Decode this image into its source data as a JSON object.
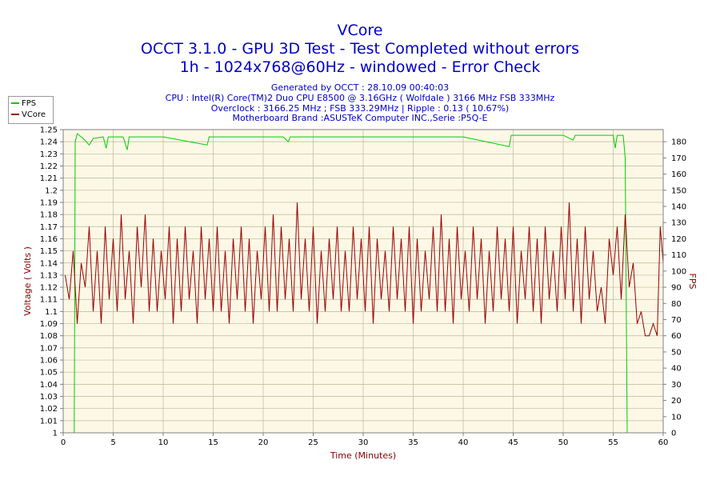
{
  "header": {
    "title": "VCore",
    "subtitle1": "OCCT 3.1.0 - GPU 3D Test - Test Completed without errors",
    "subtitle2": "1h - 1024x768@60Hz - windowed - Error Check",
    "generated": "Generated by OCCT : 28.10.09 00:40:03",
    "cpu": "CPU : Intel(R) Core(TM)2 Duo CPU E8500 @ 3.16GHz ( Wolfdale ) 3166 MHz FSB 333MHz",
    "overclock": "Overclock : 3166.25 MHz ; FSB 333.29MHz | Ripple : 0.13 ( 10.67%)",
    "motherboard": "Motherboard Brand :ASUSTeK Computer INC.,Serie :P5Q-E"
  },
  "legend": [
    {
      "name": "FPS",
      "color": "#00cc00"
    },
    {
      "name": "VCore",
      "color": "#990000"
    }
  ],
  "chart_data": {
    "type": "line",
    "xlabel": "Time (Minutes)",
    "ylabel": "Voltage ( Volts )",
    "y2label": "FPS",
    "xlim": [
      0,
      60
    ],
    "ylim": [
      1.0,
      1.25
    ],
    "y2lim": [
      0,
      187.5
    ],
    "x_ticks": [
      0,
      5,
      10,
      15,
      20,
      25,
      30,
      35,
      40,
      45,
      50,
      55,
      60
    ],
    "y_ticks": [
      "1.25",
      "1.24",
      "1.23",
      "1.22",
      "1.21",
      "1.2",
      "1.19",
      "1.18",
      "1.17",
      "1.16",
      "1.15",
      "1.14",
      "1.13",
      "1.12",
      "1.11",
      "1.1",
      "1.09",
      "1.08",
      "1.07",
      "1.06",
      "1.05",
      "1.04",
      "1.03",
      "1.02",
      "1.01",
      "1"
    ],
    "y2_ticks": [
      180,
      170,
      160,
      150,
      140,
      130,
      120,
      110,
      100,
      90,
      80,
      70,
      60,
      50,
      40,
      30,
      20,
      10,
      0
    ],
    "grid": true,
    "legend_position": "top-left",
    "series": [
      {
        "name": "FPS",
        "color": "#00cc00",
        "axis": "right",
        "points": [
          [
            0,
            0
          ],
          [
            1.1,
            0
          ],
          [
            1.2,
            180
          ],
          [
            1.4,
            185
          ],
          [
            2,
            182
          ],
          [
            2.6,
            178
          ],
          [
            3,
            182
          ],
          [
            4,
            183
          ],
          [
            4.3,
            176
          ],
          [
            4.5,
            183
          ],
          [
            6,
            183
          ],
          [
            6.4,
            175
          ],
          [
            6.6,
            183
          ],
          [
            10,
            183
          ],
          [
            14.4,
            178
          ],
          [
            14.6,
            183
          ],
          [
            22,
            183
          ],
          [
            22.5,
            180
          ],
          [
            22.7,
            183
          ],
          [
            30,
            183
          ],
          [
            40,
            183
          ],
          [
            44.6,
            177
          ],
          [
            44.8,
            184
          ],
          [
            50,
            184
          ],
          [
            51,
            181
          ],
          [
            51.2,
            184
          ],
          [
            55,
            184
          ],
          [
            55.2,
            176
          ],
          [
            55.4,
            184
          ],
          [
            56,
            184
          ],
          [
            56.2,
            170
          ],
          [
            56.4,
            0
          ],
          [
            60,
            0
          ]
        ]
      },
      {
        "name": "VCore",
        "color": "#990000",
        "axis": "left",
        "points": [
          [
            0.2,
            1.13
          ],
          [
            0.6,
            1.11
          ],
          [
            1.0,
            1.15
          ],
          [
            1.4,
            1.09
          ],
          [
            1.8,
            1.14
          ],
          [
            2.2,
            1.12
          ],
          [
            2.6,
            1.17
          ],
          [
            3.0,
            1.1
          ],
          [
            3.4,
            1.15
          ],
          [
            3.8,
            1.09
          ],
          [
            4.2,
            1.17
          ],
          [
            4.6,
            1.11
          ],
          [
            5.0,
            1.16
          ],
          [
            5.4,
            1.1
          ],
          [
            5.8,
            1.18
          ],
          [
            6.2,
            1.11
          ],
          [
            6.6,
            1.15
          ],
          [
            7.0,
            1.09
          ],
          [
            7.4,
            1.17
          ],
          [
            7.8,
            1.12
          ],
          [
            8.2,
            1.18
          ],
          [
            8.6,
            1.1
          ],
          [
            9.0,
            1.16
          ],
          [
            9.4,
            1.1
          ],
          [
            9.8,
            1.15
          ],
          [
            10.2,
            1.11
          ],
          [
            10.6,
            1.17
          ],
          [
            11.0,
            1.09
          ],
          [
            11.4,
            1.16
          ],
          [
            11.8,
            1.1
          ],
          [
            12.2,
            1.17
          ],
          [
            12.6,
            1.11
          ],
          [
            13.0,
            1.15
          ],
          [
            13.4,
            1.09
          ],
          [
            13.8,
            1.17
          ],
          [
            14.2,
            1.11
          ],
          [
            14.6,
            1.16
          ],
          [
            15.0,
            1.1
          ],
          [
            15.4,
            1.17
          ],
          [
            15.8,
            1.1
          ],
          [
            16.2,
            1.15
          ],
          [
            16.6,
            1.09
          ],
          [
            17.0,
            1.16
          ],
          [
            17.4,
            1.11
          ],
          [
            17.8,
            1.17
          ],
          [
            18.2,
            1.1
          ],
          [
            18.6,
            1.16
          ],
          [
            19.0,
            1.09
          ],
          [
            19.4,
            1.15
          ],
          [
            19.8,
            1.11
          ],
          [
            20.2,
            1.17
          ],
          [
            20.6,
            1.1
          ],
          [
            21.0,
            1.18
          ],
          [
            21.4,
            1.1
          ],
          [
            21.8,
            1.17
          ],
          [
            22.2,
            1.11
          ],
          [
            22.6,
            1.16
          ],
          [
            23.0,
            1.1
          ],
          [
            23.4,
            1.19
          ],
          [
            23.8,
            1.11
          ],
          [
            24.2,
            1.16
          ],
          [
            24.6,
            1.1
          ],
          [
            25.0,
            1.17
          ],
          [
            25.4,
            1.09
          ],
          [
            25.8,
            1.15
          ],
          [
            26.2,
            1.1
          ],
          [
            26.6,
            1.16
          ],
          [
            27.0,
            1.11
          ],
          [
            27.4,
            1.17
          ],
          [
            27.8,
            1.1
          ],
          [
            28.2,
            1.15
          ],
          [
            28.6,
            1.1
          ],
          [
            29.0,
            1.17
          ],
          [
            29.4,
            1.11
          ],
          [
            29.8,
            1.16
          ],
          [
            30.2,
            1.1
          ],
          [
            30.6,
            1.17
          ],
          [
            31.0,
            1.09
          ],
          [
            31.4,
            1.16
          ],
          [
            31.8,
            1.11
          ],
          [
            32.2,
            1.15
          ],
          [
            32.6,
            1.1
          ],
          [
            33.0,
            1.17
          ],
          [
            33.4,
            1.11
          ],
          [
            33.8,
            1.16
          ],
          [
            34.2,
            1.1
          ],
          [
            34.6,
            1.17
          ],
          [
            35.0,
            1.09
          ],
          [
            35.4,
            1.16
          ],
          [
            35.8,
            1.1
          ],
          [
            36.2,
            1.15
          ],
          [
            36.6,
            1.11
          ],
          [
            37.0,
            1.17
          ],
          [
            37.4,
            1.1
          ],
          [
            37.8,
            1.18
          ],
          [
            38.2,
            1.1
          ],
          [
            38.6,
            1.16
          ],
          [
            39.0,
            1.09
          ],
          [
            39.4,
            1.17
          ],
          [
            39.8,
            1.11
          ],
          [
            40.2,
            1.15
          ],
          [
            40.6,
            1.1
          ],
          [
            41.0,
            1.17
          ],
          [
            41.4,
            1.11
          ],
          [
            41.8,
            1.16
          ],
          [
            42.2,
            1.09
          ],
          [
            42.6,
            1.15
          ],
          [
            43.0,
            1.1
          ],
          [
            43.4,
            1.17
          ],
          [
            43.8,
            1.11
          ],
          [
            44.2,
            1.16
          ],
          [
            44.6,
            1.1
          ],
          [
            45.0,
            1.17
          ],
          [
            45.4,
            1.09
          ],
          [
            45.8,
            1.15
          ],
          [
            46.2,
            1.11
          ],
          [
            46.6,
            1.17
          ],
          [
            47.0,
            1.1
          ],
          [
            47.4,
            1.16
          ],
          [
            47.8,
            1.09
          ],
          [
            48.2,
            1.17
          ],
          [
            48.6,
            1.11
          ],
          [
            49.0,
            1.15
          ],
          [
            49.4,
            1.1
          ],
          [
            49.8,
            1.17
          ],
          [
            50.2,
            1.11
          ],
          [
            50.6,
            1.19
          ],
          [
            51.0,
            1.1
          ],
          [
            51.4,
            1.16
          ],
          [
            51.8,
            1.09
          ],
          [
            52.2,
            1.17
          ],
          [
            52.6,
            1.11
          ],
          [
            53.0,
            1.15
          ],
          [
            53.4,
            1.1
          ],
          [
            53.8,
            1.12
          ],
          [
            54.2,
            1.09
          ],
          [
            54.6,
            1.16
          ],
          [
            55.0,
            1.13
          ],
          [
            55.4,
            1.17
          ],
          [
            55.8,
            1.11
          ],
          [
            56.2,
            1.18
          ],
          [
            56.6,
            1.12
          ],
          [
            57.0,
            1.14
          ],
          [
            57.4,
            1.09
          ],
          [
            57.8,
            1.1
          ],
          [
            58.2,
            1.08
          ],
          [
            58.6,
            1.08
          ],
          [
            59.0,
            1.09
          ],
          [
            59.4,
            1.08
          ],
          [
            59.7,
            1.17
          ],
          [
            60.0,
            1.14
          ]
        ]
      }
    ]
  }
}
